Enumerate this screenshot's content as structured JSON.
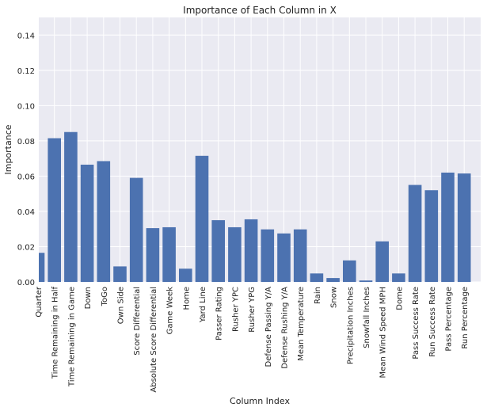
{
  "chart_data": {
    "type": "bar",
    "title": "Importance of Each Column in X",
    "xlabel": "Column Index",
    "ylabel": "Importance",
    "ylim": [
      0,
      0.15
    ],
    "yticks": [
      "0.00",
      "0.02",
      "0.04",
      "0.06",
      "0.08",
      "0.10",
      "0.12",
      "0.14"
    ],
    "grid": true,
    "bar_color": "#4c72b0",
    "background_color": "#eaeaf2",
    "categories": [
      "Quarter",
      "Time Remaining in Half",
      "Time Remaining in Game",
      "Down",
      "ToGo",
      "Own Side",
      "Score Differential",
      "Absolute Score Differential",
      "Game Week",
      "Home",
      "Yard Line",
      "Passer Rating",
      "Rusher YPC",
      "Rusher YPG",
      "Defense Passing Y/A",
      "Defense Rushing Y/A",
      "Mean Temperature",
      "Rain",
      "Snow",
      "Precipitation Inches",
      "Snowfall Inches",
      "Mean Wind Speed MPH",
      "Dome",
      "Pass Success Rate",
      "Run Success Rate",
      "Pass Percentage",
      "Run Percentage"
    ],
    "values": [
      0.0165,
      0.0815,
      0.085,
      0.0665,
      0.0685,
      0.0088,
      0.059,
      0.0305,
      0.031,
      0.0075,
      0.0715,
      0.035,
      0.031,
      0.0355,
      0.0298,
      0.0275,
      0.0298,
      0.0048,
      0.0022,
      0.0122,
      0.0008,
      0.023,
      0.0048,
      0.055,
      0.052,
      0.062,
      0.0615
    ]
  }
}
